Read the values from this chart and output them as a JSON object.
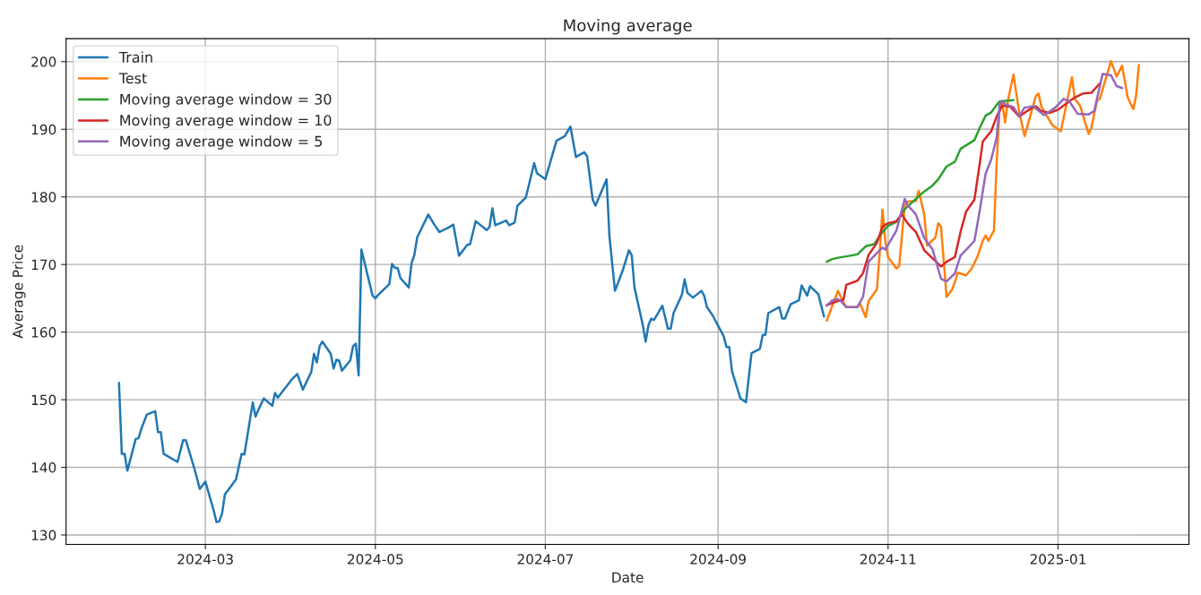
{
  "chart_data": {
    "type": "line",
    "title": "Moving average",
    "xlabel": "Date",
    "ylabel": "Average Price",
    "xlim": [
      "2024-01-11",
      "2025-02-17"
    ],
    "ylim": [
      128.6,
      203.4
    ],
    "xticks": [
      {
        "value": "2024-03-01",
        "label": "2024-03"
      },
      {
        "value": "2024-05-01",
        "label": "2024-05"
      },
      {
        "value": "2024-07-01",
        "label": "2024-07"
      },
      {
        "value": "2024-09-01",
        "label": "2024-09"
      },
      {
        "value": "2024-11-01",
        "label": "2024-11"
      },
      {
        "value": "2025-01-01",
        "label": "2025-01"
      }
    ],
    "yticks": [
      130,
      140,
      150,
      160,
      170,
      180,
      190,
      200
    ],
    "grid": true,
    "legend": "top left",
    "series": [
      {
        "name": "Train",
        "color": "#1f77b4",
        "x": [
          "2024-01-30",
          "2024-01-31",
          "2024-02-01",
          "2024-02-02",
          "2024-02-05",
          "2024-02-06",
          "2024-02-07",
          "2024-02-09",
          "2024-02-12",
          "2024-02-13",
          "2024-02-14",
          "2024-02-15",
          "2024-02-20",
          "2024-02-22",
          "2024-02-23",
          "2024-02-26",
          "2024-02-28",
          "2024-03-01",
          "2024-03-04",
          "2024-03-05",
          "2024-03-06",
          "2024-03-07",
          "2024-03-08",
          "2024-03-12",
          "2024-03-14",
          "2024-03-15",
          "2024-03-18",
          "2024-03-19",
          "2024-03-20",
          "2024-03-22",
          "2024-03-25",
          "2024-03-26",
          "2024-03-27",
          "2024-04-01",
          "2024-04-03",
          "2024-04-05",
          "2024-04-08",
          "2024-04-09",
          "2024-04-10",
          "2024-04-11",
          "2024-04-12",
          "2024-04-15",
          "2024-04-16",
          "2024-04-17",
          "2024-04-18",
          "2024-04-19",
          "2024-04-22",
          "2024-04-23",
          "2024-04-24",
          "2024-04-25",
          "2024-04-26",
          "2024-04-30",
          "2024-05-01",
          "2024-05-02",
          "2024-05-06",
          "2024-05-07",
          "2024-05-08",
          "2024-05-09",
          "2024-05-10",
          "2024-05-13",
          "2024-05-14",
          "2024-05-15",
          "2024-05-16",
          "2024-05-20",
          "2024-05-22",
          "2024-05-24",
          "2024-05-27",
          "2024-05-29",
          "2024-05-31",
          "2024-06-03",
          "2024-06-04",
          "2024-06-06",
          "2024-06-10",
          "2024-06-11",
          "2024-06-12",
          "2024-06-13",
          "2024-06-17",
          "2024-06-18",
          "2024-06-20",
          "2024-06-21",
          "2024-06-24",
          "2024-06-27",
          "2024-06-28",
          "2024-07-01",
          "2024-07-05",
          "2024-07-08",
          "2024-07-10",
          "2024-07-12",
          "2024-07-15",
          "2024-07-16",
          "2024-07-18",
          "2024-07-19",
          "2024-07-23",
          "2024-07-24",
          "2024-07-26",
          "2024-07-29",
          "2024-07-31",
          "2024-08-01",
          "2024-08-02",
          "2024-08-05",
          "2024-08-06",
          "2024-08-07",
          "2024-08-08",
          "2024-08-09",
          "2024-08-12",
          "2024-08-14",
          "2024-08-15",
          "2024-08-16",
          "2024-08-19",
          "2024-08-20",
          "2024-08-21",
          "2024-08-23",
          "2024-08-26",
          "2024-08-27",
          "2024-08-28",
          "2024-08-30",
          "2024-09-03",
          "2024-09-04",
          "2024-09-05",
          "2024-09-06",
          "2024-09-09",
          "2024-09-11",
          "2024-09-13",
          "2024-09-16",
          "2024-09-17",
          "2024-09-18",
          "2024-09-19",
          "2024-09-23",
          "2024-09-24",
          "2024-09-25",
          "2024-09-27",
          "2024-09-30",
          "2024-10-01",
          "2024-10-03",
          "2024-10-04",
          "2024-10-07",
          "2024-10-09"
        ],
        "values": [
          152.5,
          142,
          142,
          139.5,
          144.2,
          144.3,
          145.7,
          147.8,
          148.3,
          145.2,
          145.2,
          142,
          140.8,
          144,
          144,
          139.9,
          136.8,
          137.9,
          133.6,
          131.9,
          132,
          133.2,
          136,
          138.2,
          142,
          141.9,
          149.6,
          147.5,
          148.5,
          150.2,
          149.1,
          151,
          150.3,
          153,
          153.8,
          151.5,
          154.1,
          156.8,
          155.5,
          157.9,
          158.6,
          156.8,
          154.6,
          155.9,
          155.8,
          154.3,
          155.8,
          157.9,
          158.3,
          153.6,
          172.2,
          165.4,
          165,
          165.5,
          167.1,
          170.1,
          169.5,
          169.5,
          168,
          166.6,
          170.2,
          171.4,
          174,
          177.4,
          176,
          174.8,
          175.4,
          175.9,
          171.3,
          172.9,
          173,
          176.4,
          175.1,
          175.6,
          178.3,
          175.8,
          176.5,
          175.8,
          176.2,
          178.7,
          179.9,
          185,
          183.5,
          182.6,
          188.3,
          189,
          190.4,
          185.9,
          186.6,
          186,
          179.6,
          178.7,
          182.6,
          174.2,
          166.1,
          169.4,
          172.1,
          171.4,
          166.6,
          161,
          158.6,
          161,
          162,
          161.8,
          163.9,
          160.5,
          160.5,
          162.8,
          165.5,
          167.8,
          165.8,
          165.1,
          166.1,
          165.4,
          163.7,
          162.5,
          159.4,
          157.8,
          157.8,
          154.2,
          150.2,
          149.6,
          156.9,
          157.5,
          159.6,
          159.6,
          162.8,
          163.7,
          162,
          162,
          164.1,
          164.7,
          166.9,
          165.4,
          166.8,
          165.6,
          162.3
        ]
      },
      {
        "name": "Test",
        "color": "#ff7f0e",
        "x": [
          "2024-10-10",
          "2024-10-14",
          "2024-10-16",
          "2024-10-17",
          "2024-10-21",
          "2024-10-22",
          "2024-10-24",
          "2024-10-25",
          "2024-10-28",
          "2024-10-29",
          "2024-10-30",
          "2024-10-31",
          "2024-11-01",
          "2024-11-04",
          "2024-11-05",
          "2024-11-07",
          "2024-11-08",
          "2024-11-11",
          "2024-11-12",
          "2024-11-14",
          "2024-11-15",
          "2024-11-18",
          "2024-11-19",
          "2024-11-20",
          "2024-11-22",
          "2024-11-24",
          "2024-11-25",
          "2024-11-26",
          "2024-11-29",
          "2024-12-01",
          "2024-12-03",
          "2024-12-05",
          "2024-12-06",
          "2024-12-07",
          "2024-12-09",
          "2024-12-10",
          "2024-12-11",
          "2024-12-12",
          "2024-12-13",
          "2024-12-14",
          "2024-12-16",
          "2024-12-18",
          "2024-12-20",
          "2024-12-22",
          "2024-12-24",
          "2024-12-25",
          "2024-12-26",
          "2024-12-30",
          "2025-01-02",
          "2025-01-04",
          "2025-01-06",
          "2025-01-07",
          "2025-01-09",
          "2025-01-12",
          "2025-01-13",
          "2025-01-15",
          "2025-01-16",
          "2025-01-18",
          "2025-01-20",
          "2025-01-22",
          "2025-01-24",
          "2025-01-26",
          "2025-01-28",
          "2025-01-29",
          "2025-01-30"
        ],
        "values": [
          161.7,
          166.1,
          164.4,
          163.7,
          163.7,
          164.2,
          162.2,
          164.6,
          166.3,
          171.7,
          178.1,
          173.5,
          171.1,
          169.4,
          169.8,
          178.7,
          179.3,
          179.4,
          180.9,
          177.4,
          172.8,
          174,
          176.1,
          175.6,
          165.2,
          166.3,
          167.4,
          168.8,
          168.4,
          169.4,
          171.1,
          173.5,
          174.3,
          173.5,
          175,
          185.2,
          192.9,
          193.8,
          191,
          194.2,
          198.1,
          192.7,
          189,
          191.9,
          194.9,
          195.3,
          193.4,
          190.6,
          189.7,
          193.6,
          197.7,
          194.5,
          193.4,
          189.3,
          190.3,
          194.2,
          194.5,
          197.3,
          200.1,
          197.8,
          199.4,
          194.7,
          193,
          194.9,
          199.5
        ]
      },
      {
        "name": "Moving average window = 30",
        "color": "#2ca02c",
        "x": [
          "2024-10-10",
          "2024-10-12",
          "2024-10-14",
          "2024-10-17",
          "2024-10-21",
          "2024-10-24",
          "2024-10-27",
          "2024-10-30",
          "2024-11-01",
          "2024-11-04",
          "2024-11-07",
          "2024-11-11",
          "2024-11-14",
          "2024-11-17",
          "2024-11-19",
          "2024-11-22",
          "2024-11-25",
          "2024-11-27",
          "2024-12-02",
          "2024-12-04",
          "2024-12-06",
          "2024-12-08",
          "2024-12-10",
          "2024-12-11",
          "2024-12-16"
        ],
        "values": [
          170.4,
          170.8,
          171,
          171.2,
          171.5,
          172.7,
          173,
          174.8,
          175.7,
          176.3,
          178.2,
          179.7,
          180.8,
          181.7,
          182.6,
          184.5,
          185.2,
          187.1,
          188.4,
          190.3,
          192,
          192.5,
          193.6,
          194.1,
          194.3
        ]
      },
      {
        "name": "Moving average window = 10",
        "color": "#d62728",
        "x": [
          "2024-10-10",
          "2024-10-14",
          "2024-10-16",
          "2024-10-17",
          "2024-10-21",
          "2024-10-23",
          "2024-10-25",
          "2024-10-28",
          "2024-10-30",
          "2024-11-01",
          "2024-11-04",
          "2024-11-06",
          "2024-11-08",
          "2024-11-11",
          "2024-11-14",
          "2024-11-16",
          "2024-11-20",
          "2024-11-22",
          "2024-11-25",
          "2024-11-27",
          "2024-11-29",
          "2024-12-02",
          "2024-12-04",
          "2024-12-05",
          "2024-12-08",
          "2024-12-10",
          "2024-12-12",
          "2024-12-15",
          "2024-12-18",
          "2024-12-22",
          "2024-12-24",
          "2024-12-26",
          "2024-12-29",
          "2025-01-01",
          "2025-01-04",
          "2025-01-07",
          "2025-01-10",
          "2025-01-13",
          "2025-01-16"
        ],
        "values": [
          164,
          164.6,
          164.8,
          167,
          167.6,
          168.7,
          171.4,
          173.2,
          175.6,
          176.1,
          176.4,
          177.4,
          176.1,
          174.8,
          172.1,
          171.3,
          169.7,
          170.4,
          171.1,
          174.8,
          177.8,
          179.6,
          185.2,
          188.2,
          189.7,
          191.9,
          193.5,
          193.3,
          191.9,
          193,
          193.4,
          192.7,
          192.4,
          192.9,
          193.8,
          194.7,
          195.3,
          195.4,
          196.8
        ]
      },
      {
        "name": "Moving average window = 5",
        "color": "#9467bd",
        "x": [
          "2024-10-10",
          "2024-10-12",
          "2024-10-14",
          "2024-10-15",
          "2024-10-17",
          "2024-10-21",
          "2024-10-23",
          "2024-10-25",
          "2024-10-28",
          "2024-10-30",
          "2024-10-31",
          "2024-11-04",
          "2024-11-07",
          "2024-11-08",
          "2024-11-11",
          "2024-11-14",
          "2024-11-17",
          "2024-11-20",
          "2024-11-22",
          "2024-11-25",
          "2024-11-27",
          "2024-11-30",
          "2024-12-02",
          "2024-12-04",
          "2024-12-06",
          "2024-12-08",
          "2024-12-10",
          "2024-12-11",
          "2024-12-12",
          "2024-12-13",
          "2024-12-16",
          "2024-12-18",
          "2024-12-20",
          "2024-12-23",
          "2024-12-27",
          "2024-12-31",
          "2025-01-03",
          "2025-01-05",
          "2025-01-08",
          "2025-01-12",
          "2025-01-14",
          "2025-01-17",
          "2025-01-20",
          "2025-01-22",
          "2025-01-24"
        ],
        "values": [
          163.9,
          164.7,
          164.9,
          164.6,
          163.7,
          163.7,
          165.2,
          170.4,
          171.7,
          172.5,
          172.2,
          175,
          179.7,
          178.8,
          177.4,
          173.9,
          172.2,
          167.9,
          167.5,
          168.7,
          171.3,
          172.6,
          173.5,
          178.2,
          183.4,
          185.5,
          188.8,
          193.6,
          194.2,
          193.7,
          193.3,
          191.9,
          193.2,
          193.4,
          192.1,
          193.2,
          194.5,
          194.2,
          192.3,
          192.2,
          192.7,
          198.2,
          198,
          196.4,
          196.1
        ]
      }
    ]
  }
}
